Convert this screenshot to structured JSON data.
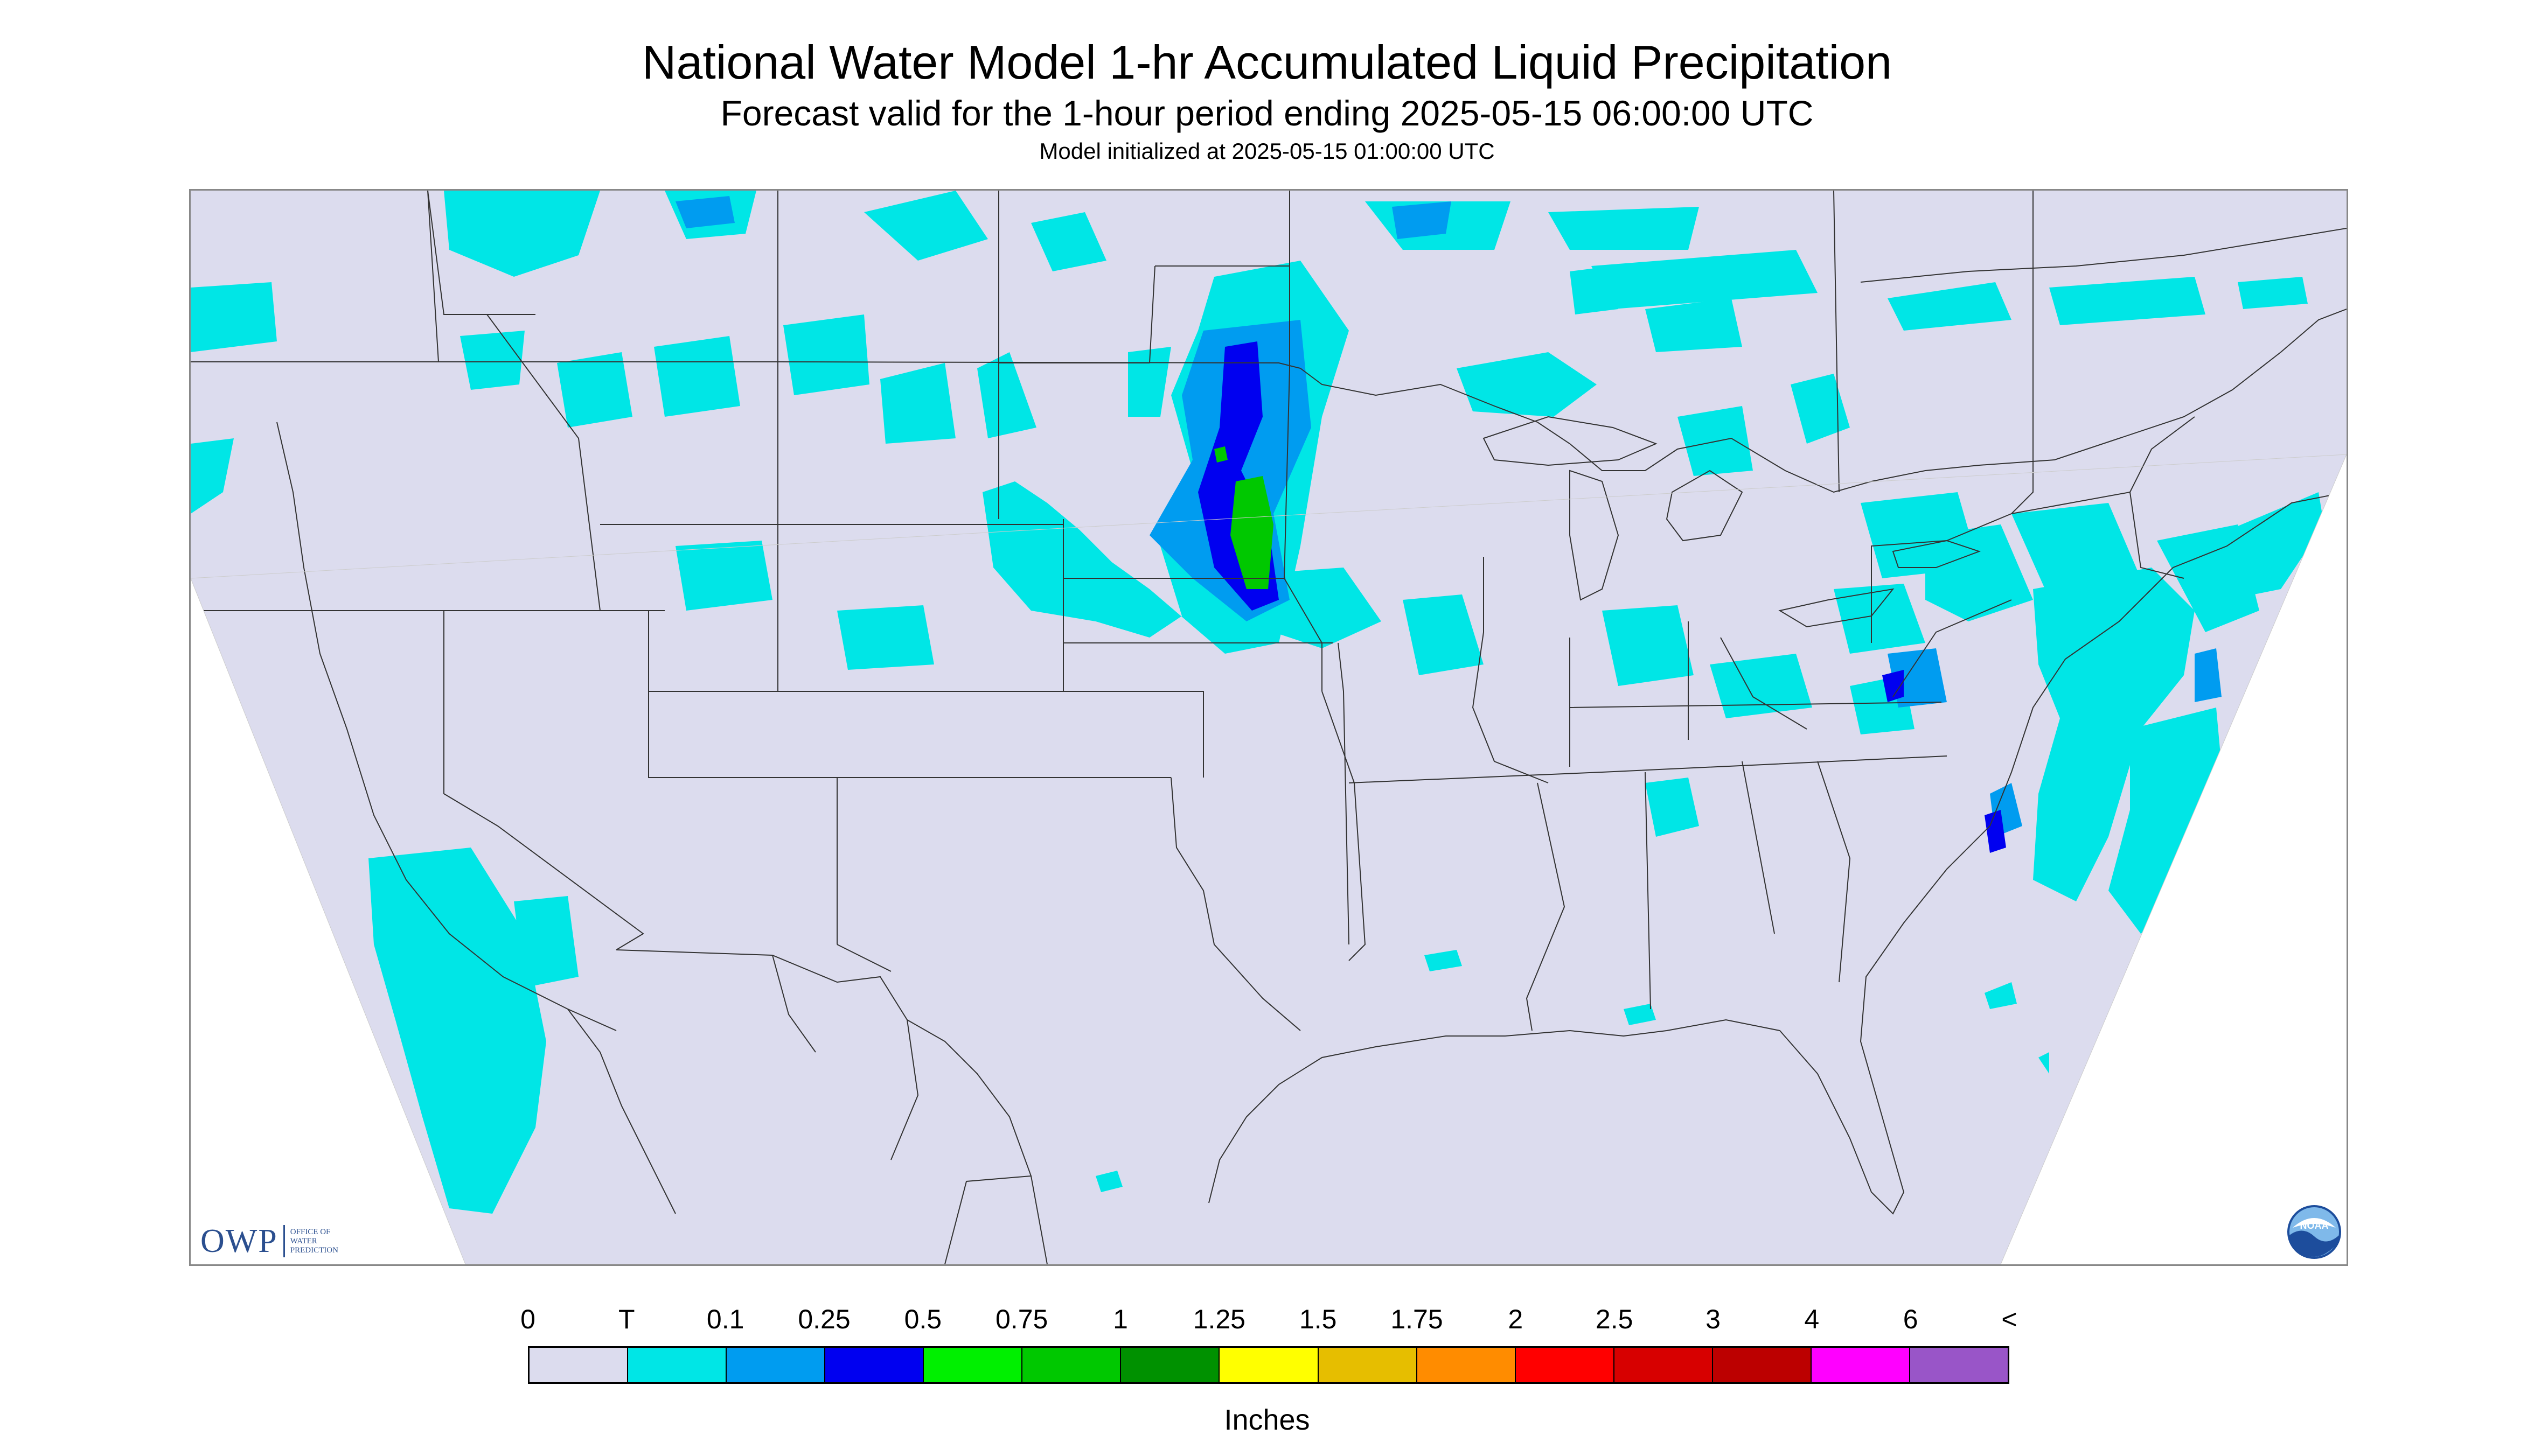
{
  "title": "National Water Model 1-hr Accumulated Liquid Precipitation",
  "subtitle": "Forecast valid for the 1-hour period ending 2025-05-15 06:00:00 UTC",
  "init": "Model initialized at 2025-05-15 01:00:00 UTC",
  "map": {
    "domain_fill": "#dcdcee",
    "outside_fill": "#ffffff",
    "boundary_color": "#333333"
  },
  "branding": {
    "owp_mark": "OWP",
    "owp_lines": [
      "OFFICE OF",
      "WATER",
      "PREDICTION"
    ],
    "noaa_label": "NOAA",
    "noaa_icon": "noaa-logo-icon"
  },
  "legend": {
    "labels": [
      "0",
      "T",
      "0.1",
      "0.25",
      "0.5",
      "0.75",
      "1",
      "1.25",
      "1.5",
      "1.75",
      "2",
      "2.5",
      "3",
      "4",
      "6",
      "<"
    ],
    "colors": [
      "#dcdcee",
      "#00e6e6",
      "#009cf0",
      "#0000f0",
      "#00f000",
      "#00c800",
      "#009100",
      "#ffff00",
      "#e6be00",
      "#ff8c00",
      "#ff0000",
      "#d70000",
      "#bc0000",
      "#ff00ff",
      "#9955c8"
    ],
    "units": "Inches"
  }
}
